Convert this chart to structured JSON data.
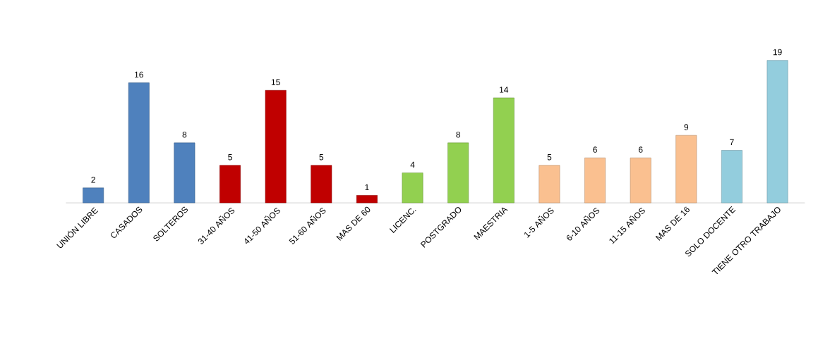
{
  "chart_data": {
    "type": "bar",
    "categories": [
      "UNIÓN LIBRE",
      "CASADOS",
      "SOLTEROS",
      "31-40 AÑOS",
      "41-50 AÑOS",
      "51-60 AÑOS",
      "MAS DE 60",
      "LICENC.",
      "POSTGRADO",
      "MAESTRIA",
      "1-5 AÑOS",
      "6-10 AÑOS",
      "11-15 AÑOS",
      "MAS DE 16",
      "SOLO DOCENTE",
      "TIENE OTRO TRABAJO"
    ],
    "values": [
      2,
      16,
      8,
      5,
      15,
      5,
      1,
      4,
      8,
      14,
      5,
      6,
      6,
      9,
      7,
      19
    ],
    "colors": [
      "#4f81bd",
      "#4f81bd",
      "#4f81bd",
      "#c00000",
      "#c00000",
      "#c00000",
      "#c00000",
      "#92d050",
      "#92d050",
      "#92d050",
      "#fac090",
      "#fac090",
      "#fac090",
      "#fac090",
      "#93cddd",
      "#93cddd"
    ],
    "data_labels": true
  }
}
